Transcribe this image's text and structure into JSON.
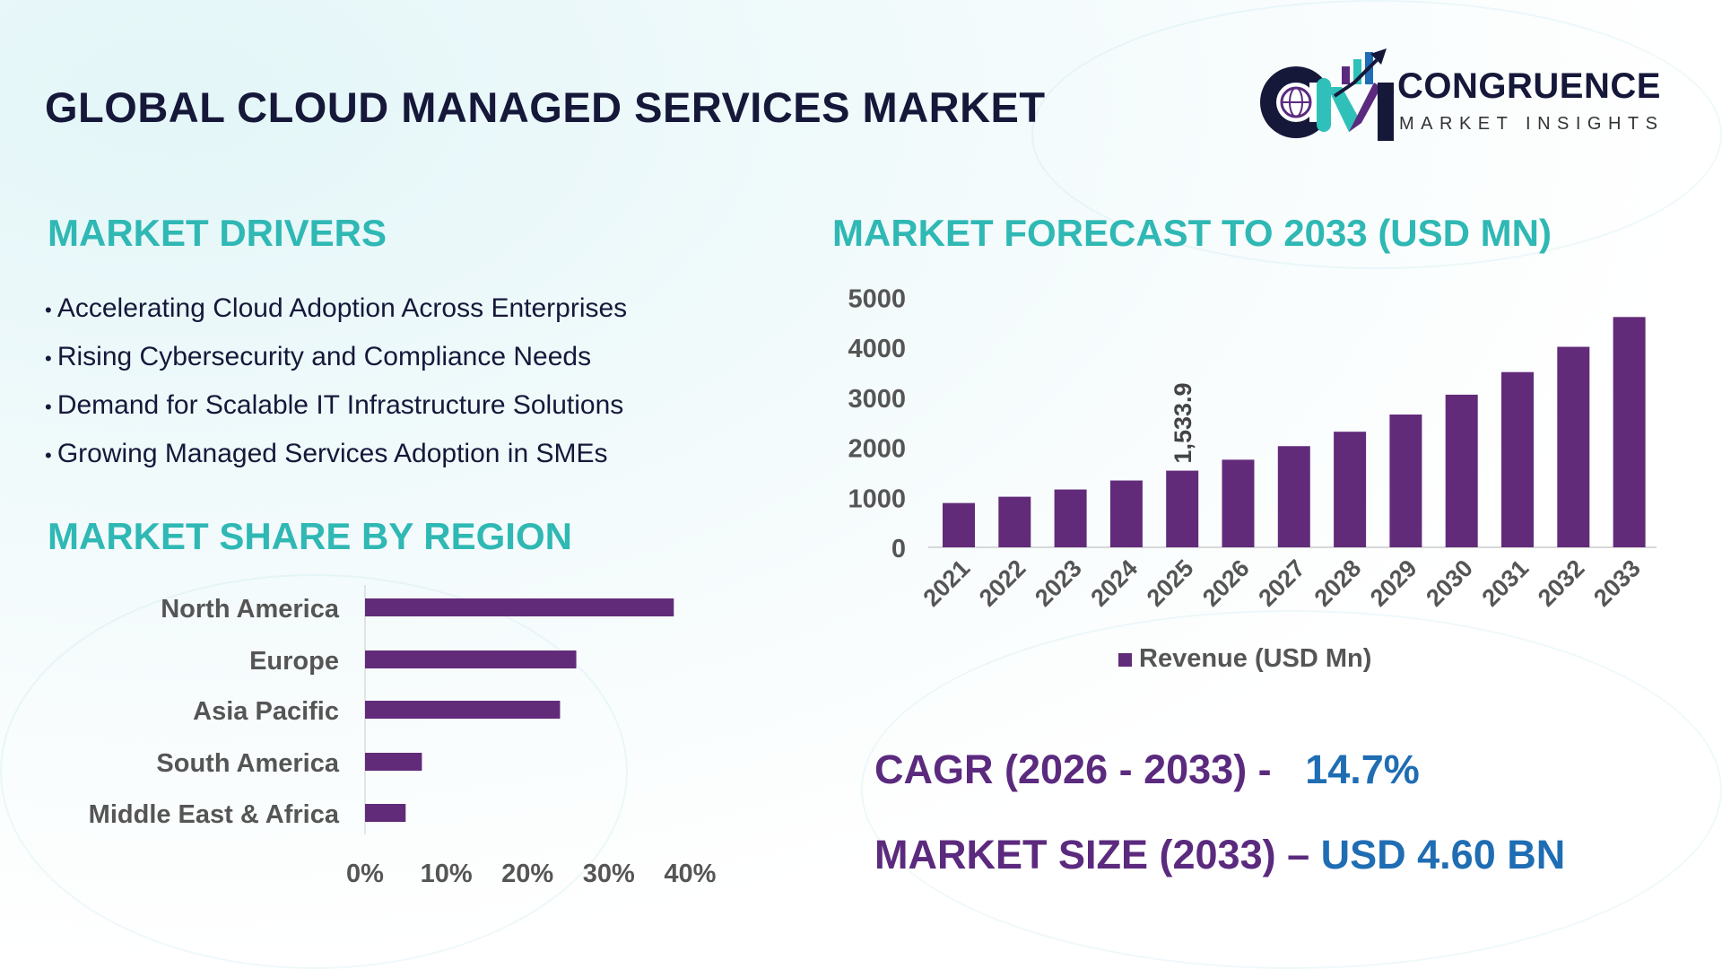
{
  "title": "GLOBAL CLOUD MANAGED SERVICES MARKET",
  "logo": {
    "name": "CONGRUENCE",
    "subtitle": "MARKET INSIGHTS",
    "colors": [
      "#16183a",
      "#5b2a7e",
      "#2fc1b9",
      "#1f6db3"
    ]
  },
  "drivers": {
    "heading": "MARKET DRIVERS",
    "items": [
      "Accelerating Cloud Adoption Across Enterprises",
      "Rising Cybersecurity and Compliance Needs",
      "Demand for Scalable IT Infrastructure Solutions",
      "Growing Managed Services Adoption in SMEs"
    ]
  },
  "region": {
    "heading": "MARKET SHARE BY REGION"
  },
  "forecast": {
    "heading": "MARKET FORECAST TO 2033 (USD MN)"
  },
  "stats": {
    "cagr_label": "CAGR (2026 - 2033) -",
    "cagr_value": "14.7%",
    "size_label": "MARKET SIZE (2033) –",
    "size_value": "USD 4.60 BN"
  },
  "chart_data": [
    {
      "type": "bar",
      "orientation": "horizontal",
      "categories": [
        "North America",
        "Europe",
        "Asia Pacific",
        "South America",
        "Middle East & Africa"
      ],
      "values": [
        38,
        26,
        24,
        7,
        5
      ],
      "xlim": [
        0,
        40
      ],
      "xticks": [
        "0%",
        "10%",
        "20%",
        "30%",
        "40%"
      ],
      "color": "#622b7a",
      "grid": false
    },
    {
      "type": "bar",
      "categories": [
        "2021",
        "2022",
        "2023",
        "2024",
        "2025",
        "2026",
        "2027",
        "2028",
        "2029",
        "2030",
        "2031",
        "2032",
        "2033"
      ],
      "series": [
        {
          "name": "Revenue (USD Mn)",
          "values": [
            886,
            1012,
            1157,
            1337,
            1533.9,
            1753,
            2024,
            2313,
            2657,
            3054,
            3506,
            4012,
            4608
          ]
        }
      ],
      "data_labels": [
        {
          "category": "2025",
          "text": "1,533.9"
        }
      ],
      "ylim": [
        0,
        5000
      ],
      "yticks": [
        "0",
        "1000",
        "2000",
        "3000",
        "4000",
        "5000"
      ],
      "legend": "bottom",
      "color": "#622b7a",
      "grid": false
    }
  ]
}
